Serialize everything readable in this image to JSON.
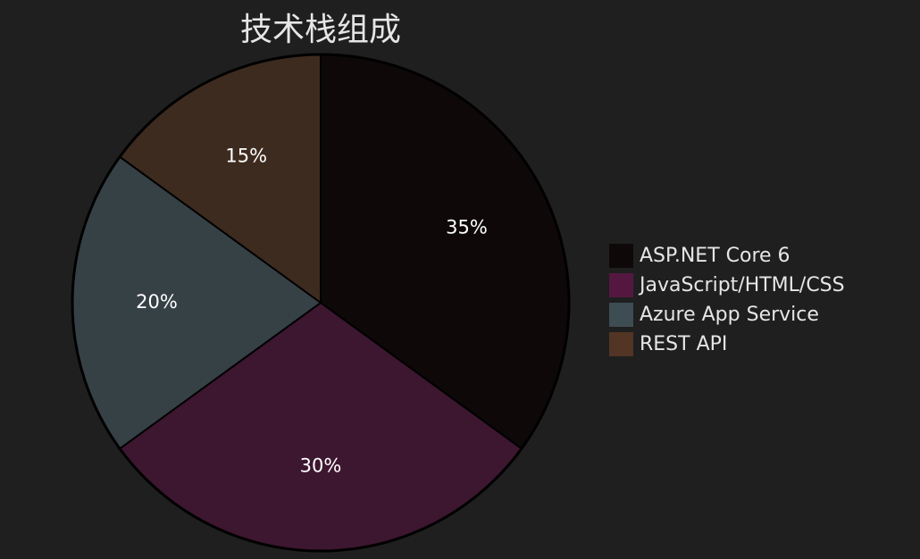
{
  "chart_data": {
    "type": "pie",
    "title": "技术栈组成",
    "categories": [
      "ASP.NET Core 6",
      "JavaScript/HTML/CSS",
      "Azure App Service",
      "REST API"
    ],
    "values": [
      35,
      30,
      20,
      15
    ],
    "value_labels": [
      "35%",
      "30%",
      "20%",
      "15%"
    ],
    "slice_colors": [
      "#0e0809",
      "#3d1630",
      "#364146",
      "#3e2b20"
    ],
    "legend_colors": [
      "#0e0809",
      "#541840",
      "#3e4c54",
      "#523524"
    ],
    "legend_placement": "right",
    "start_angle": "12 o'clock",
    "direction": "clockwise"
  }
}
